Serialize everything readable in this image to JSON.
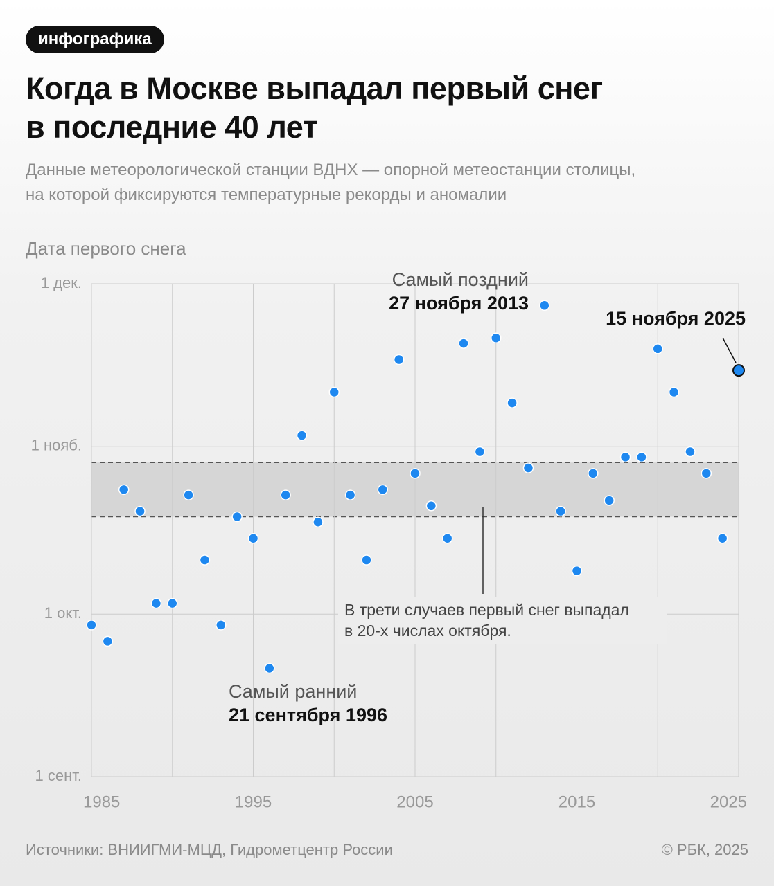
{
  "tag": "инфографика",
  "chart_data": {
    "type": "scatter",
    "title": [
      "Когда в Москве выпадал первый снег",
      "в последние 40 лет"
    ],
    "subtitle": [
      "Данные метеорологической станции ВДНХ — опорной метеостанции столицы,",
      "на которой фиксируются температурные рекорды и аномалии"
    ],
    "y_label": "Дата первого снега",
    "x": [
      1985,
      1986,
      1987,
      1988,
      1989,
      1990,
      1991,
      1992,
      1993,
      1994,
      1995,
      1996,
      1997,
      1998,
      1999,
      2000,
      2001,
      2002,
      2003,
      2004,
      2005,
      2006,
      2007,
      2008,
      2009,
      2010,
      2011,
      2012,
      2013,
      2014,
      2015,
      2016,
      2017,
      2018,
      2019,
      2020,
      2021,
      2022,
      2023,
      2024,
      2025
    ],
    "values": [
      28,
      25,
      53,
      49,
      32,
      32,
      52,
      40,
      28,
      48,
      44,
      20,
      52,
      63,
      47,
      71,
      52,
      40,
      53,
      77,
      56,
      50,
      44,
      80,
      60,
      81,
      69,
      57,
      87,
      49,
      38,
      56,
      51,
      59,
      59,
      79,
      71,
      60,
      56,
      44,
      75
    ],
    "color": "#1e88f0",
    "highlight_index": 40,
    "xlim": [
      1985,
      2025
    ],
    "xticks": [
      1985,
      1995,
      2005,
      2015,
      2025
    ],
    "minor_xticks": [
      1990,
      2000,
      2010,
      2020
    ],
    "ylim": [
      0,
      91
    ],
    "yticks": [
      {
        "value": 0,
        "label": "1 сент."
      },
      {
        "value": 30,
        "label": "1 окт."
      },
      {
        "value": 61,
        "label": "1 нояб."
      },
      {
        "value": 91,
        "label": "1 дек."
      }
    ],
    "grid": true,
    "band": [
      48,
      58
    ],
    "annotations": [
      {
        "lines": [
          "Самый поздний",
          "27 ноября 2013"
        ]
      },
      {
        "lines": [
          "Самый ранний",
          "21 сентября 1996"
        ]
      },
      {
        "lines": [
          "15 ноября 2025"
        ]
      },
      {
        "lines": [
          "В трети случаев первый снег выпадал",
          "в 20-х числах октября."
        ]
      }
    ]
  },
  "footer": {
    "source": "Источники: ВНИИГМИ-МЦД, Гидрометцентр России",
    "copyright": "© РБК, 2025"
  }
}
